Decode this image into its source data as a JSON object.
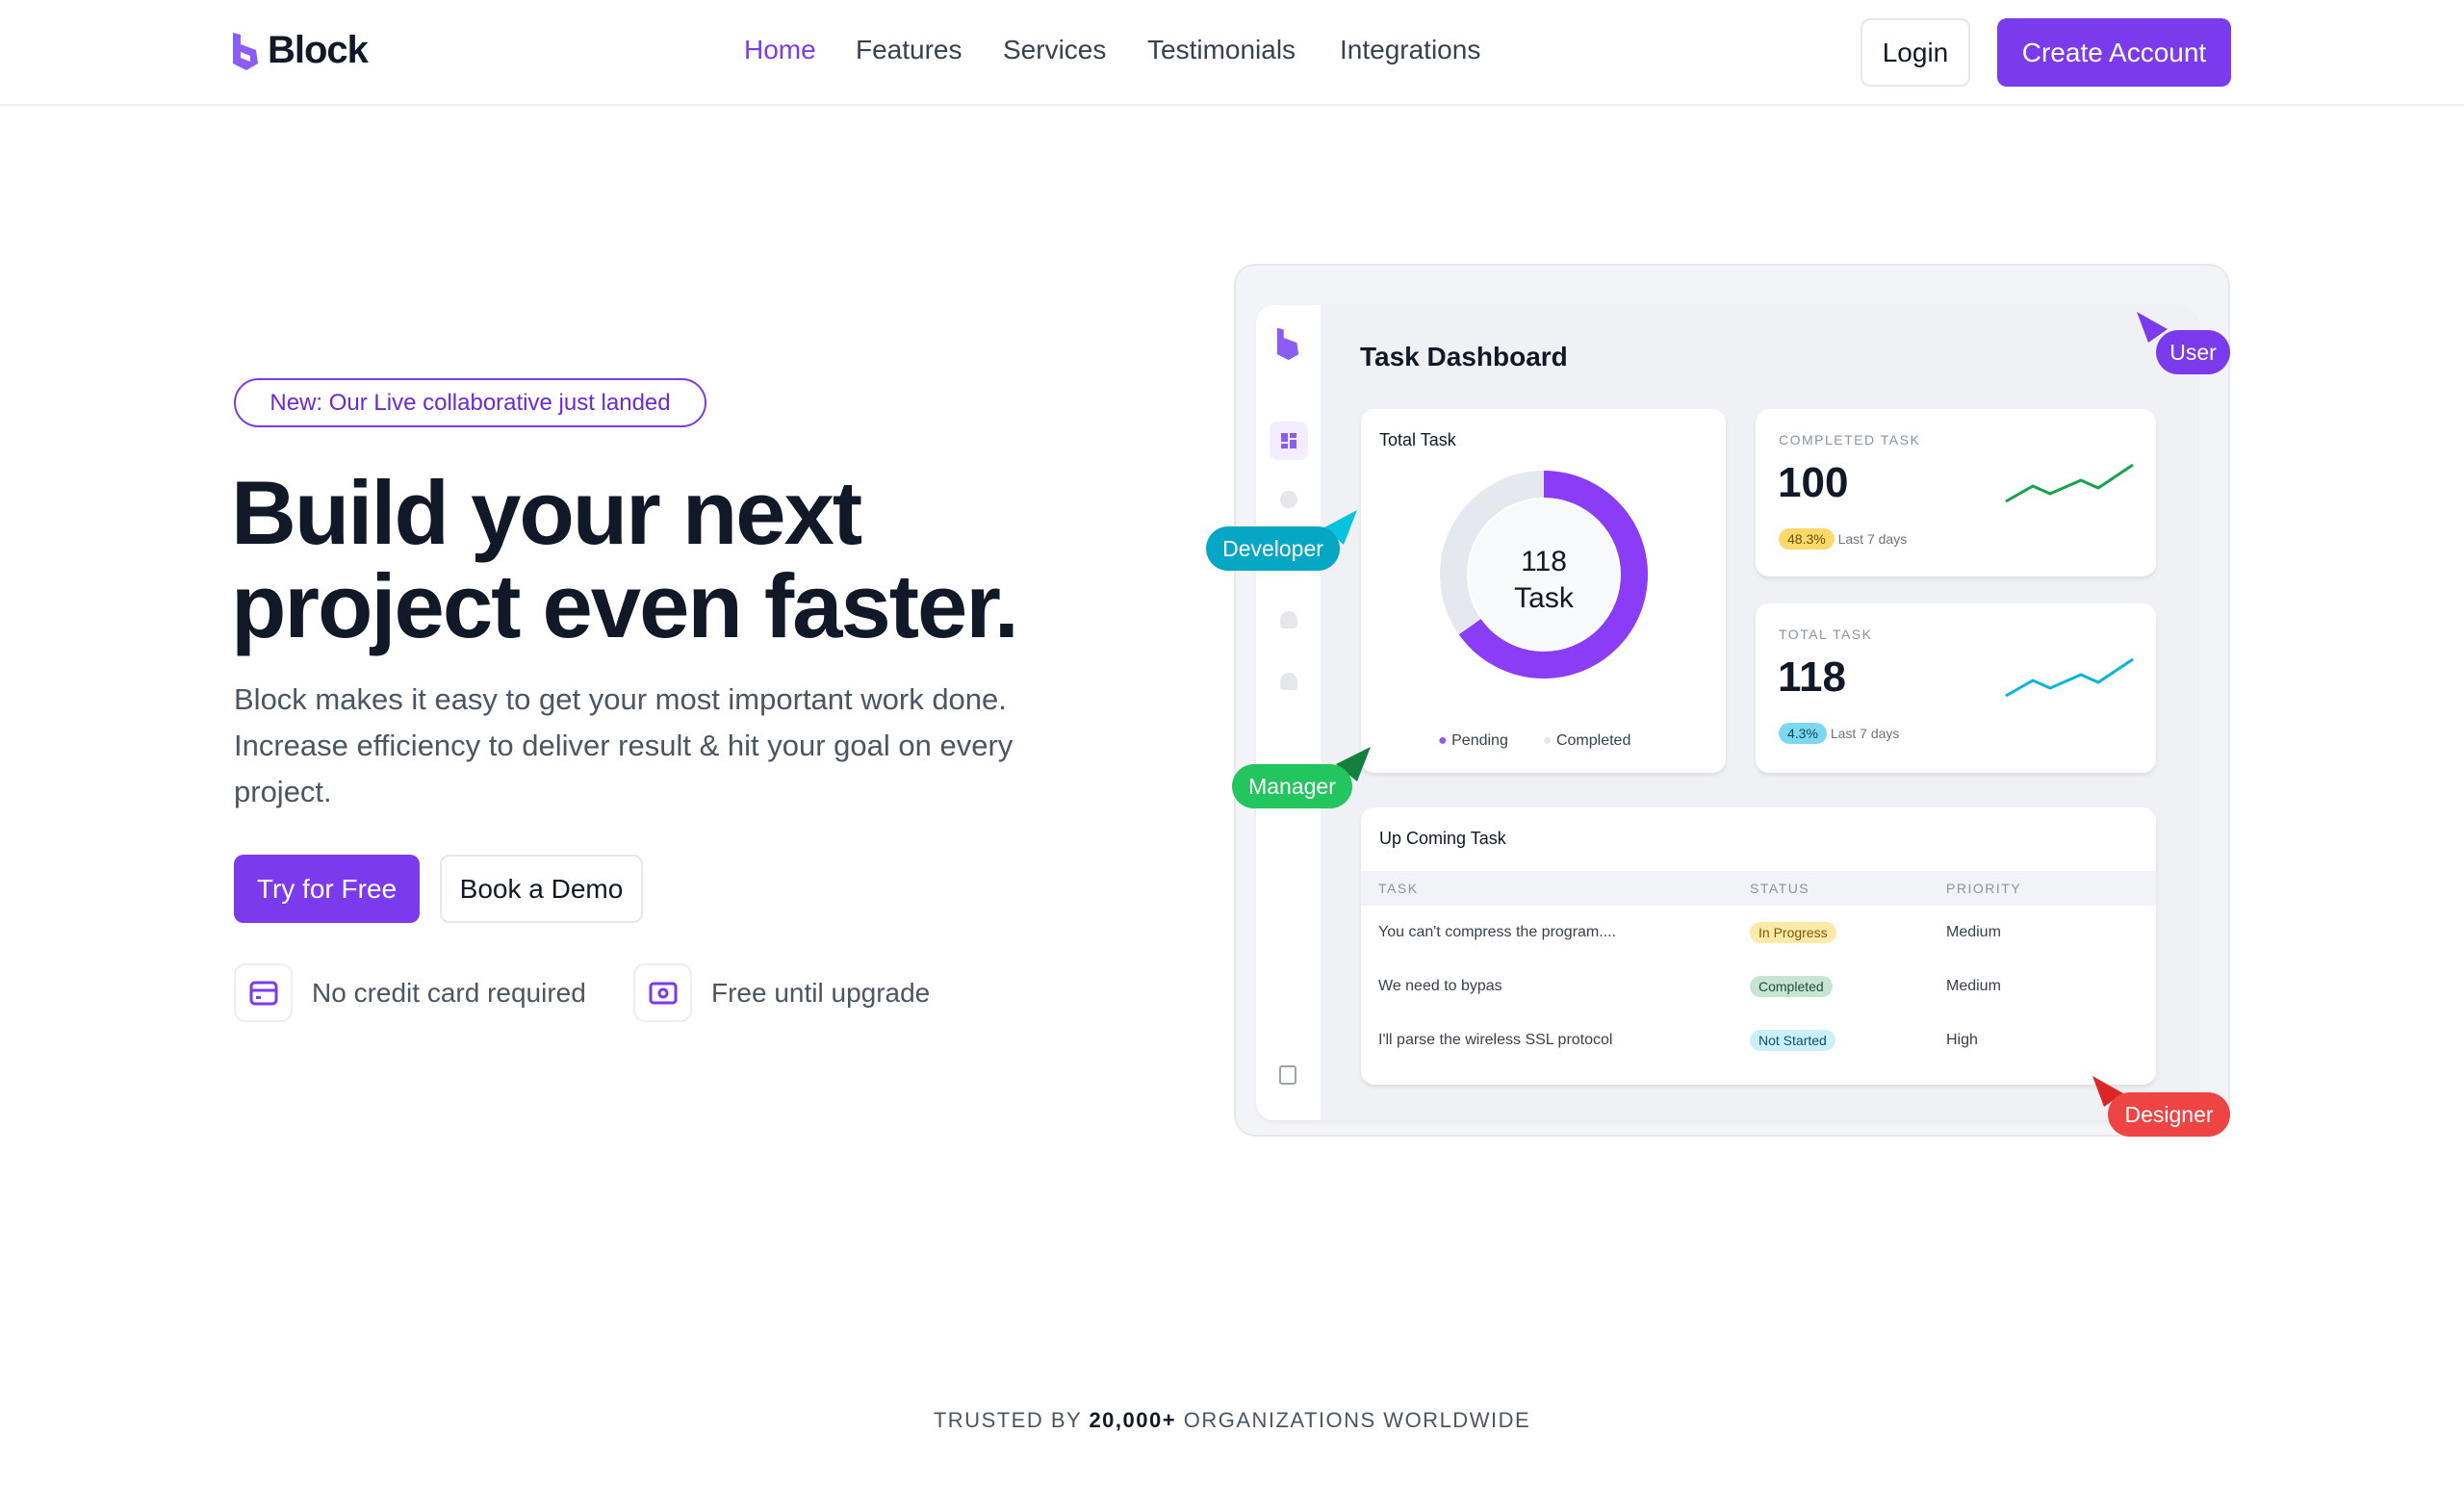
{
  "brand": {
    "name": "Block",
    "accent": "#7c3aed"
  },
  "nav": {
    "items": [
      {
        "label": "Home",
        "active": true
      },
      {
        "label": "Features"
      },
      {
        "label": "Services"
      },
      {
        "label": "Testimonials"
      },
      {
        "label": "Integrations"
      }
    ],
    "login": "Login",
    "create_account": "Create Account"
  },
  "hero": {
    "badge": "New: Our Live collaborative just landed",
    "title_line1": "Build your next",
    "title_line2": "project even faster.",
    "lead": "Block makes it easy to get your most important work done. Increase efficiency to deliver result & hit your goal on every project.",
    "try_label": "Try for Free",
    "demo_label": "Book a Demo",
    "features": [
      {
        "icon": "credit-card-icon",
        "label": "No credit card required"
      },
      {
        "icon": "banknote-icon",
        "label": "Free until upgrade"
      }
    ]
  },
  "dashboard": {
    "title": "Task Dashboard",
    "total_card": {
      "title": "Total Task",
      "center_value": "118",
      "center_label": "Task",
      "legend": [
        "Pending",
        "Completed"
      ]
    },
    "completed_card": {
      "label": "COMPLETED TASK",
      "value": "100",
      "change": "48.3%",
      "period": "Last 7 days",
      "line_color": "#16a34a"
    },
    "total_task_card": {
      "label": "TOTAL TASK",
      "value": "118",
      "change": "4.3%",
      "period": "Last 7 days",
      "line_color": "#06b6d4"
    },
    "upcoming": {
      "title": "Up Coming Task",
      "columns": [
        "TASK",
        "STATUS",
        "PRIORITY"
      ],
      "rows": [
        {
          "task": "You can't compress the program....",
          "status": "In Progress",
          "priority": "Medium"
        },
        {
          "task": "We need to bypas",
          "status": "Completed",
          "priority": "Medium"
        },
        {
          "task": "I'll parse the wireless SSL protocol",
          "status": "Not Started",
          "priority": "High"
        }
      ]
    }
  },
  "cursors": [
    {
      "label": "User",
      "color": "#7c3aed"
    },
    {
      "label": "Developer",
      "color": "#06a7c4"
    },
    {
      "label": "Manager",
      "color": "#22c55e"
    },
    {
      "label": "Designer",
      "color": "#ef4444"
    }
  ],
  "trusted": {
    "prefix": "TRUSTED BY",
    "count": "20,000+",
    "suffix": "ORGANIZATIONS WORLDWIDE"
  }
}
